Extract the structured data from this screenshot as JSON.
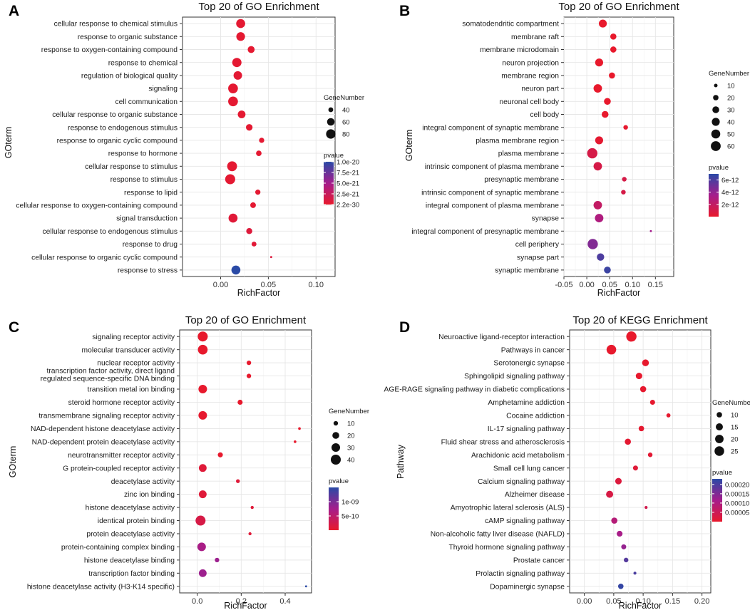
{
  "size_legend_title": "GeneNumber",
  "color_legend_title": "pvalue",
  "colors": {
    "low_pvalue": "#e8192c",
    "mid_pvalue": "#a51d8c",
    "high_pvalue": "#2a4aa6"
  },
  "chart_data": [
    {
      "panel": "A",
      "type": "scatter",
      "title": "Top 20 of GO Enrichment",
      "xlabel": "RichFactor",
      "ylabel": "GOterm",
      "xlim": [
        -0.04,
        0.12
      ],
      "xticks": [
        0.0,
        0.05,
        0.1
      ],
      "xtick_labels": [
        "0.00",
        "0.05",
        "0.10"
      ],
      "size_legend": {
        "values": [
          40,
          60,
          80
        ],
        "labels": [
          "40",
          "60",
          "80"
        ],
        "range": [
          28,
          90
        ]
      },
      "color_legend": {
        "min": 2.2e-30,
        "max": 1e-20,
        "ticks": [
          1e-20,
          7.5e-21,
          5e-21,
          2.5e-21,
          2.2e-30
        ],
        "labels": [
          "1.0e-20",
          "7.5e-21",
          "5.0e-21",
          "2.5e-21",
          "2.2e-30"
        ]
      },
      "categories": [
        "cellular response to chemical stimulus",
        "response to organic substance",
        "response to oxygen-containing compound",
        "response to chemical",
        "regulation of biological quality",
        "signaling",
        "cell communication",
        "cellular response to organic substance",
        "response to endogenous stimulus",
        "response to organic cyclic compound",
        "response to hormone",
        "cellular response to stimulus",
        "response to stimulus",
        "response to lipid",
        "cellular response to oxygen-containing compound",
        "signal transduction",
        "cellular response to endogenous stimulus",
        "response to drug",
        "cellular response to organic cyclic compound",
        "response to stress"
      ],
      "x": [
        0.021,
        0.021,
        0.032,
        0.017,
        0.018,
        0.013,
        0.013,
        0.022,
        0.03,
        0.043,
        0.04,
        0.012,
        0.01,
        0.039,
        0.034,
        0.013,
        0.03,
        0.035,
        0.053,
        0.016
      ],
      "gene_number": [
        75,
        72,
        55,
        78,
        70,
        84,
        84,
        62,
        52,
        42,
        44,
        85,
        87,
        42,
        45,
        75,
        48,
        40,
        28,
        75
      ],
      "pvalue": [
        3e-22,
        3e-22,
        2.5e-22,
        3e-22,
        4e-22,
        3e-22,
        3e-22,
        3e-22,
        3e-22,
        3e-22,
        3e-22,
        3e-22,
        3e-22,
        3e-22,
        3e-22,
        6e-22,
        8e-22,
        5e-22,
        9e-22,
        1e-20
      ]
    },
    {
      "panel": "B",
      "type": "scatter",
      "title": "Top 20 of GO Enrichment",
      "xlabel": "RichFactor",
      "ylabel": "GOterm",
      "xlim": [
        -0.05,
        0.19
      ],
      "xticks": [
        -0.05,
        0.0,
        0.05,
        0.1,
        0.15
      ],
      "xtick_labels": [
        "-0.05",
        "0.00",
        "0.05",
        "0.10",
        "0.15"
      ],
      "size_legend": {
        "values": [
          10,
          20,
          30,
          40,
          50,
          60
        ],
        "labels": [
          "10",
          "20",
          "30",
          "40",
          "50",
          "60"
        ],
        "range": [
          5,
          65
        ]
      },
      "color_legend": {
        "min": 0,
        "max": 7e-12,
        "ticks": [
          6e-12,
          4e-12,
          2e-12
        ],
        "labels": [
          "6e-12",
          "4e-12",
          "2e-12"
        ]
      },
      "categories": [
        "somatodendritic compartment",
        "membrane raft",
        "membrane microdomain",
        "neuron projection",
        "membrane region",
        "neuron part",
        "neuronal cell body",
        "cell body",
        "integral component of synaptic membrane",
        "plasma membrane region",
        "plasma membrane",
        "intrinsic component of plasma membrane",
        "presynaptic membrane",
        "intrinsic component of synaptic membrane",
        "integral component of plasma membrane",
        "synapse",
        "integral component of presynaptic membrane",
        "cell periphery",
        "synapse part",
        "synaptic membrane"
      ],
      "x": [
        0.035,
        0.058,
        0.058,
        0.027,
        0.055,
        0.024,
        0.045,
        0.04,
        0.085,
        0.027,
        0.012,
        0.024,
        0.082,
        0.08,
        0.024,
        0.027,
        0.14,
        0.013,
        0.03,
        0.045
      ],
      "gene_number": [
        40,
        25,
        25,
        40,
        25,
        45,
        30,
        30,
        15,
        40,
        65,
        45,
        15,
        15,
        45,
        45,
        5,
        65,
        35,
        30
      ],
      "pvalue": [
        1e-14,
        1e-14,
        1e-14,
        1e-14,
        1e-14,
        1e-14,
        1e-14,
        1e-14,
        1e-13,
        2e-13,
        1e-12,
        1e-12,
        1e-12,
        1e-12,
        2e-12,
        3e-12,
        3.5e-12,
        4.5e-12,
        6e-12,
        6.5e-12
      ]
    },
    {
      "panel": "C",
      "type": "scatter",
      "title": "Top 20 of GO Enrichment",
      "xlabel": "RichFactor",
      "ylabel": "GOterm",
      "xlim": [
        -0.08,
        0.52
      ],
      "xticks": [
        0.0,
        0.2,
        0.4
      ],
      "xtick_labels": [
        "0.0",
        "0.2",
        "0.4"
      ],
      "size_legend": {
        "values": [
          10,
          20,
          30,
          40
        ],
        "labels": [
          "10",
          "20",
          "30",
          "40"
        ],
        "range": [
          4,
          42
        ]
      },
      "color_legend": {
        "min": 0,
        "max": 1.5e-09,
        "ticks": [
          1e-09,
          5e-10
        ],
        "labels": [
          "1e-09",
          "5e-10"
        ]
      },
      "categories": [
        "signaling receptor activity",
        "molecular transducer activity",
        "nuclear receptor activity",
        "transcription factor activity, direct ligand regulated sequence-specific DNA binding",
        "transition metal ion binding",
        "steroid hormone receptor activity",
        "transmembrane signaling receptor activity",
        "NAD-dependent histone deacetylase activity",
        "NAD-dependent protein deacetylase activity",
        "neurotransmitter receptor activity",
        "G protein-coupled receptor activity",
        "deacetylase activity",
        "zinc ion binding",
        "histone deacetylase activity",
        "identical protein binding",
        "protein deacetylase activity",
        "protein-containing complex binding",
        "histone deacetylase binding",
        "transcription factor binding",
        "histone deacetylase activity (H3-K14 specific)"
      ],
      "x": [
        0.025,
        0.025,
        0.235,
        0.235,
        0.025,
        0.195,
        0.025,
        0.465,
        0.445,
        0.105,
        0.025,
        0.185,
        0.025,
        0.25,
        0.015,
        0.24,
        0.02,
        0.09,
        0.025,
        0.495
      ],
      "gene_number": [
        40,
        38,
        10,
        10,
        30,
        12,
        30,
        5,
        5,
        12,
        25,
        8,
        25,
        6,
        40,
        6,
        30,
        10,
        25,
        4
      ],
      "pvalue": [
        1e-11,
        1e-11,
        1e-11,
        1e-11,
        1e-11,
        1e-11,
        2e-11,
        1e-11,
        1e-11,
        1e-11,
        1e-10,
        1e-10,
        1e-10,
        1e-10,
        2e-10,
        1e-10,
        7e-10,
        8e-10,
        8e-10,
        1.5e-09
      ]
    },
    {
      "panel": "D",
      "type": "scatter",
      "title": "Top 20 of KEGG Enrichment",
      "xlabel": "RichFactor",
      "ylabel": "Pathway",
      "xlim": [
        -0.025,
        0.215
      ],
      "xticks": [
        0.0,
        0.05,
        0.1,
        0.15,
        0.2
      ],
      "xtick_labels": [
        "0.00",
        "0.05",
        "0.10",
        "0.15",
        "0.20"
      ],
      "size_legend": {
        "values": [
          10,
          15,
          20,
          25
        ],
        "labels": [
          "10",
          "15",
          "20",
          "25"
        ],
        "range": [
          4,
          28
        ]
      },
      "color_legend": {
        "min": 0,
        "max": 0.00023,
        "ticks": [
          0.0002,
          0.00015,
          0.0001,
          5e-05
        ],
        "labels": [
          "0.00020",
          "0.00015",
          "0.00010",
          "0.00005"
        ]
      },
      "categories": [
        "Neuroactive ligand-receptor interaction",
        "Pathways in cancer",
        "Serotonergic synapse",
        "Sphingolipid signaling pathway",
        "AGE-RAGE signaling pathway in diabetic complications",
        "Amphetamine addiction",
        "Cocaine addiction",
        "IL-17 signaling pathway",
        "Fluid shear stress and atherosclerosis",
        "Arachidonic acid metabolism",
        "Small cell lung cancer",
        "Calcium signaling pathway",
        "Alzheimer disease",
        "Amyotrophic lateral sclerosis (ALS)",
        "cAMP signaling pathway",
        "Non-alcoholic fatty liver disease (NAFLD)",
        "Thyroid hormone signaling pathway",
        "Prostate cancer",
        "Prolactin signaling pathway",
        "Dopaminergic synapse"
      ],
      "x": [
        0.08,
        0.046,
        0.104,
        0.093,
        0.1,
        0.116,
        0.143,
        0.097,
        0.074,
        0.112,
        0.087,
        0.058,
        0.043,
        0.105,
        0.051,
        0.06,
        0.067,
        0.071,
        0.086,
        0.062
      ],
      "gene_number": [
        28,
        25,
        14,
        13,
        12,
        9,
        7,
        10,
        12,
        8,
        9,
        13,
        15,
        5,
        12,
        11,
        9,
        8,
        5,
        10
      ],
      "pvalue": [
        1e-07,
        1e-06,
        1e-06,
        2e-06,
        3e-06,
        3e-06,
        3e-06,
        5e-06,
        7e-06,
        1e-05,
        1.5e-05,
        2e-05,
        3e-05,
        4e-05,
        9e-05,
        0.00011,
        0.00013,
        0.00019,
        0.0002,
        0.00022
      ]
    }
  ]
}
